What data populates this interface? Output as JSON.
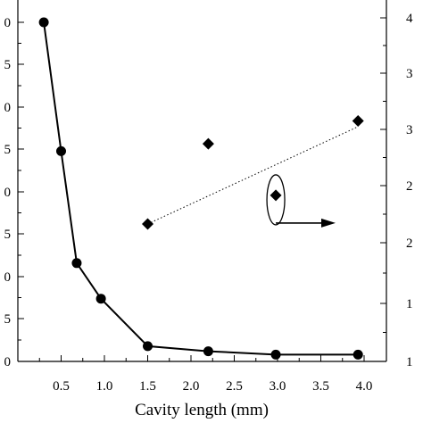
{
  "chart_data": {
    "type": "scatter",
    "title": "",
    "xlabel": "Cavity length (mm)",
    "xlim": [
      0.0,
      4.2
    ],
    "x_ticks": [
      "0.5",
      "1.0",
      "1.5",
      "2.0",
      "2.5",
      "3.0",
      "3.5",
      "4.0"
    ],
    "left_tick_labels": [
      "0",
      "5",
      "0",
      "5",
      "0",
      "5",
      "0",
      "5",
      "0"
    ],
    "right_tick_labels": [
      "4",
      "3",
      "3",
      "2",
      "2",
      "1",
      "1"
    ],
    "grid": false,
    "series": [
      {
        "axis": "left",
        "style": "line-with-circles",
        "color": "#000000",
        "points": [
          {
            "x": 0.3,
            "y": 100.0
          },
          {
            "x": 0.5,
            "y": 62.0
          },
          {
            "x": 0.68,
            "y": 29.0
          },
          {
            "x": 0.96,
            "y": 18.5
          },
          {
            "x": 1.5,
            "y": 4.5
          },
          {
            "x": 2.2,
            "y": 3.0
          },
          {
            "x": 2.98,
            "y": 2.0
          },
          {
            "x": 3.93,
            "y": 2.0
          }
        ]
      },
      {
        "axis": "right",
        "style": "diamonds",
        "color": "#000000",
        "points": [
          {
            "x": 1.5,
            "y": 2.2
          },
          {
            "x": 2.2,
            "y": 2.9
          },
          {
            "x": 2.98,
            "y": 2.45
          },
          {
            "x": 3.93,
            "y": 3.1
          }
        ],
        "trend_line": {
          "x": [
            1.5,
            3.93
          ],
          "y": [
            2.2,
            3.05
          ],
          "style": "dotted"
        }
      }
    ],
    "annotation": {
      "type": "ellipse-with-arrow",
      "points_to": "right-axis",
      "near_x": 2.98
    }
  }
}
